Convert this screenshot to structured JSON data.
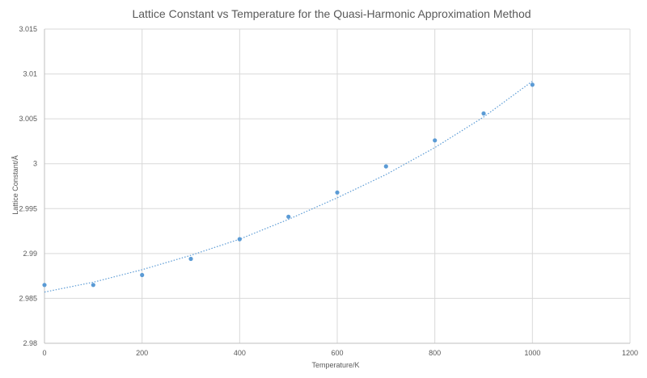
{
  "chart_data": {
    "type": "scatter",
    "title": "Lattice Constant vs Temperature for the Quasi-Harmonic Approximation Method",
    "xlabel": "Temperature/K",
    "ylabel": "Lattice Constant/Å",
    "xlim": [
      0,
      1200
    ],
    "ylim": [
      2.98,
      3.015
    ],
    "xticks": [
      0,
      200,
      400,
      600,
      800,
      1000,
      1200
    ],
    "yticks": [
      2.98,
      2.985,
      2.99,
      2.995,
      3,
      3.005,
      3.01,
      3.015
    ],
    "xtick_labels": [
      "0",
      "200",
      "400",
      "600",
      "800",
      "1000",
      "1200"
    ],
    "ytick_labels": [
      "2.98",
      "2.985",
      "2.99",
      "2.995",
      "3",
      "3.005",
      "3.01",
      "3.015"
    ],
    "grid": true,
    "legend": "none",
    "point_color": "#5b9bd5",
    "trendline_color": "#5b9bd5",
    "points": {
      "x": [
        0,
        100,
        200,
        300,
        400,
        500,
        600,
        700,
        800,
        900,
        1000
      ],
      "y": [
        2.9865,
        2.9865,
        2.9876,
        2.9894,
        2.9916,
        2.9941,
        2.9968,
        2.9997,
        3.0026,
        3.0056,
        3.0088
      ]
    },
    "trendline": {
      "type": "polynomial",
      "order": 2,
      "x": [
        0,
        100,
        200,
        300,
        400,
        500,
        600,
        700,
        800,
        900,
        1000
      ],
      "y": [
        2.9857,
        2.9868,
        2.9882,
        2.9898,
        2.9916,
        2.9938,
        2.9962,
        2.9988,
        3.0018,
        3.0052,
        3.0092
      ]
    }
  }
}
